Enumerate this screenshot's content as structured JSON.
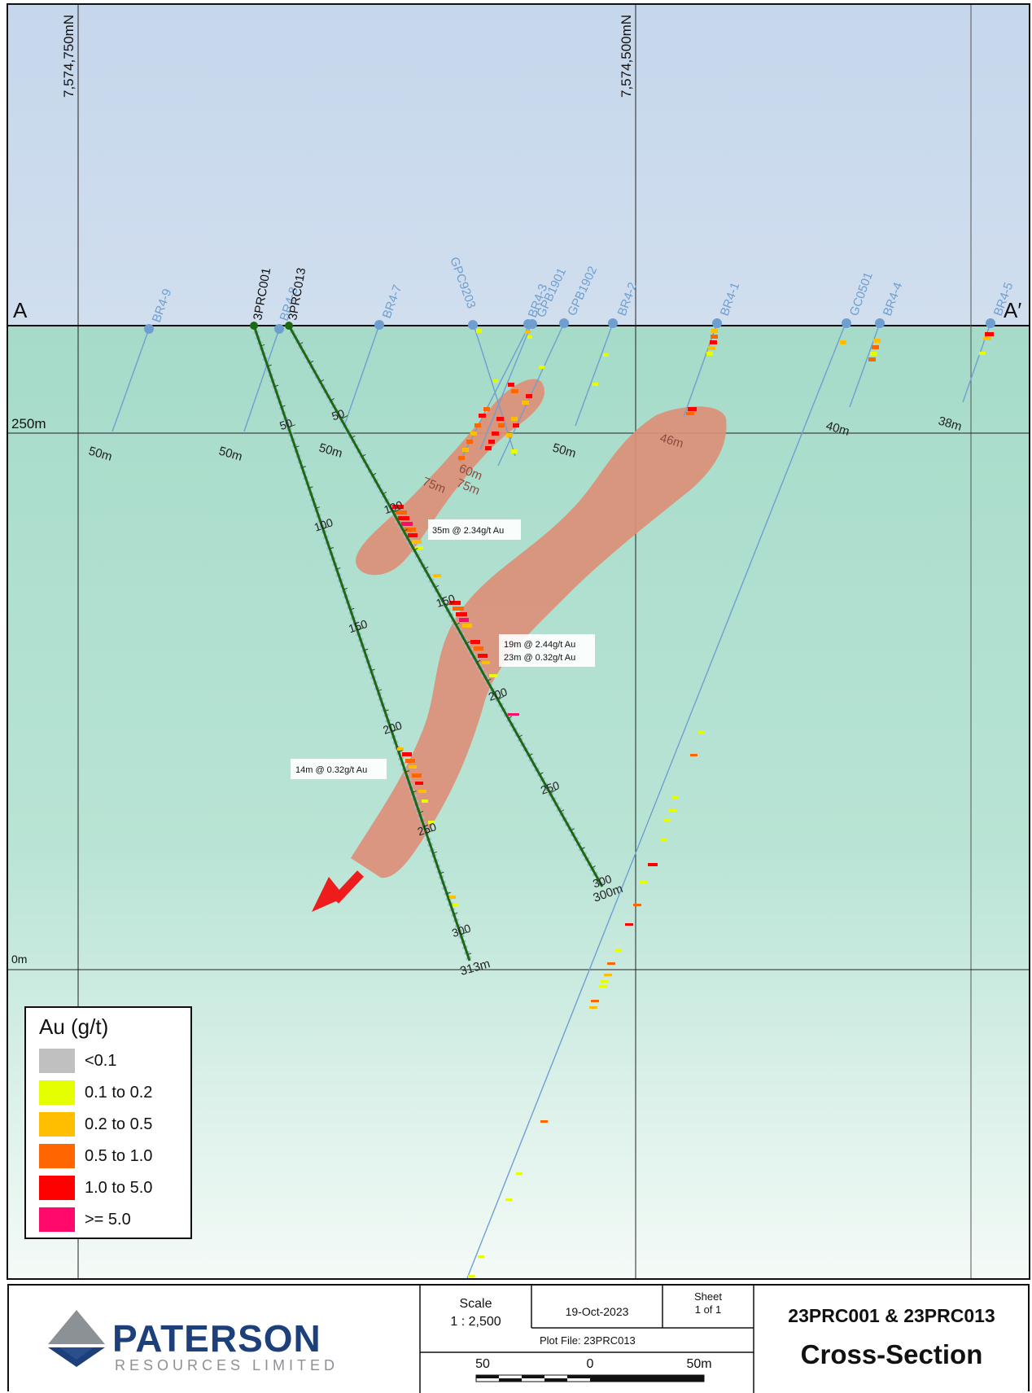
{
  "section": {
    "end_left": "A",
    "end_right": "A′",
    "northings": [
      "7,574,750mN",
      "7,574,500mN"
    ],
    "elevations": [
      "250m",
      "0m"
    ]
  },
  "collars": [
    {
      "name": "BR4-9"
    },
    {
      "name": "3PRC001"
    },
    {
      "name": "BR4-8"
    },
    {
      "name": "3PRC013"
    },
    {
      "name": "BR4-7"
    },
    {
      "name": "GPC9203"
    },
    {
      "name": "BR4-3"
    },
    {
      "name": "GPB1901"
    },
    {
      "name": "GPB1902"
    },
    {
      "name": "BR4-2"
    },
    {
      "name": "BR4-1"
    },
    {
      "name": "GC0501"
    },
    {
      "name": "BR4-4"
    },
    {
      "name": "BR4-5"
    }
  ],
  "hole_depth_labels": [
    "50m",
    "50m",
    "50m",
    "75m",
    "60m",
    "75m",
    "50m",
    "46m",
    "40m",
    "38m",
    "300m",
    "313m"
  ],
  "trace_ticks": {
    "hole_001": [
      "50",
      "100",
      "150",
      "200",
      "250",
      "300"
    ],
    "hole_013": [
      "50",
      "100",
      "150",
      "200",
      "250",
      "300"
    ]
  },
  "intercepts": {
    "i1": "35m @ 2.34g/t Au",
    "i2a": "19m @ 2.44g/t Au",
    "i2b": "23m @ 0.32g/t Au",
    "i3": "14m @ 0.32g/t Au"
  },
  "legend": {
    "title": "Au (g/t)",
    "items": [
      {
        "label": "<0.1",
        "color": "#c0c0c0"
      },
      {
        "label": "0.1 to 0.2",
        "color": "#e6ff00"
      },
      {
        "label": "0.2 to 0.5",
        "color": "#ffbf00"
      },
      {
        "label": "0.5 to 1.0",
        "color": "#ff6600"
      },
      {
        "label": "1.0 to 5.0",
        "color": "#ff0000"
      },
      {
        "label": ">= 5.0",
        "color": "#ff0a6c"
      }
    ]
  },
  "colors": {
    "sky": "#c8d8ec",
    "ground": "#a9dccb",
    "ore_zone": "#dc8f78",
    "trace_planned": "#1a6b14",
    "trace_historic": "#6f9fd0",
    "arrow": "#ee1c1c"
  },
  "title_block": {
    "company": "PATERSON",
    "company_sub": "RESOURCES LIMITED",
    "scale_label": "Scale",
    "scale_value": "1 : 2,500",
    "date": "19-Oct-2023",
    "sheet_label": "Sheet",
    "sheet_value": "1 of 1",
    "plot_file": "Plot File: 23PRC013",
    "scalebar": [
      "50",
      "0",
      "50m"
    ],
    "holes_title": "23PRC001 & 23PRC013",
    "section_title": "Cross-Section"
  }
}
